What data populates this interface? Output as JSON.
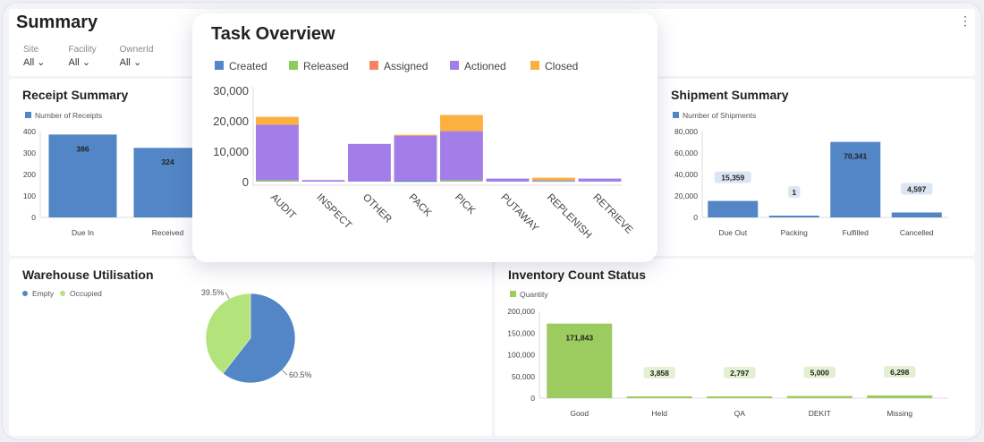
{
  "header": {
    "title": "Summary",
    "filters": [
      {
        "label": "Site",
        "value": "All"
      },
      {
        "label": "Facility",
        "value": "All"
      },
      {
        "label": "OwnerId",
        "value": "All"
      }
    ],
    "menu_icon": "kebab-vertical-icon"
  },
  "chart_data": [
    {
      "id": "receipt",
      "type": "bar",
      "title": "Receipt Summary",
      "legend": [
        "Number of Receipts"
      ],
      "color": "#5286c6",
      "categories": [
        "Due In",
        "Received"
      ],
      "values": [
        386,
        324
      ],
      "ylim": [
        0,
        400
      ],
      "yticks": [
        0,
        100,
        200,
        300,
        400
      ],
      "tick_labels": [
        "0",
        "100",
        "200",
        "300",
        "400"
      ],
      "value_labels": [
        "386",
        "324"
      ]
    },
    {
      "id": "task",
      "type": "bar",
      "stacked": true,
      "title": "Task Overview",
      "legend_placement": "top",
      "categories": [
        "AUDIT",
        "INSPECT",
        "OTHER",
        "PACK",
        "PICK",
        "PUTAWAY",
        "REPLENISH",
        "RETRIEVE"
      ],
      "series": [
        {
          "name": "Created",
          "color": "#5286c6",
          "values": [
            0,
            0,
            0,
            300,
            0,
            0,
            0,
            0
          ]
        },
        {
          "name": "Released",
          "color": "#8fcb5a",
          "values": [
            400,
            0,
            0,
            0,
            400,
            0,
            300,
            0
          ]
        },
        {
          "name": "Assigned",
          "color": "#f7845e",
          "values": [
            0,
            0,
            0,
            0,
            0,
            0,
            0,
            0
          ]
        },
        {
          "name": "Actioned",
          "color": "#a47ee8",
          "values": [
            18300,
            500,
            12400,
            14900,
            16200,
            1000,
            200,
            1000
          ]
        },
        {
          "name": "Closed",
          "color": "#fbb040",
          "values": [
            2600,
            0,
            0,
            200,
            5300,
            0,
            800,
            0
          ]
        }
      ],
      "ylim": [
        0,
        30000
      ],
      "yticks": [
        0,
        10000,
        20000,
        30000
      ],
      "tick_labels": [
        "0",
        "10,000",
        "20,000",
        "30,000"
      ]
    },
    {
      "id": "shipment",
      "type": "bar",
      "title": "Shipment Summary",
      "legend": [
        "Number of Shipments"
      ],
      "color": "#5286c6",
      "categories": [
        "Due Out",
        "Packing",
        "Fulfilled",
        "Cancelled"
      ],
      "values": [
        15359,
        1,
        70341,
        4597
      ],
      "ylim": [
        0,
        80000
      ],
      "yticks": [
        0,
        20000,
        40000,
        60000,
        80000
      ],
      "tick_labels": [
        "0",
        "20,000",
        "40,000",
        "60,000",
        "80,000"
      ],
      "value_labels": [
        "15,359",
        "1",
        "70,341",
        "4,597"
      ]
    },
    {
      "id": "warehouse",
      "type": "pie",
      "title": "Warehouse Utilisation",
      "slices": [
        {
          "name": "Empty",
          "value": 60.5,
          "label": "60.5%",
          "color": "#5286c6"
        },
        {
          "name": "Occupied",
          "value": 39.5,
          "label": "39.5%",
          "color": "#b3e37b"
        }
      ]
    },
    {
      "id": "inventory",
      "type": "bar",
      "title": "Inventory Count Status",
      "legend": [
        "Quantity"
      ],
      "color": "#9ccc5f",
      "categories": [
        "Good",
        "Held",
        "QA",
        "DEKIT",
        "Missing"
      ],
      "values": [
        171843,
        3858,
        2797,
        5000,
        6298
      ],
      "ylim": [
        0,
        200000
      ],
      "yticks": [
        0,
        50000,
        100000,
        150000,
        200000
      ],
      "tick_labels": [
        "0",
        "50,000",
        "100,000",
        "150,000",
        "200,000"
      ],
      "value_labels": [
        "171,843",
        "3,858",
        "2,797",
        "5,000",
        "6,298"
      ]
    }
  ]
}
